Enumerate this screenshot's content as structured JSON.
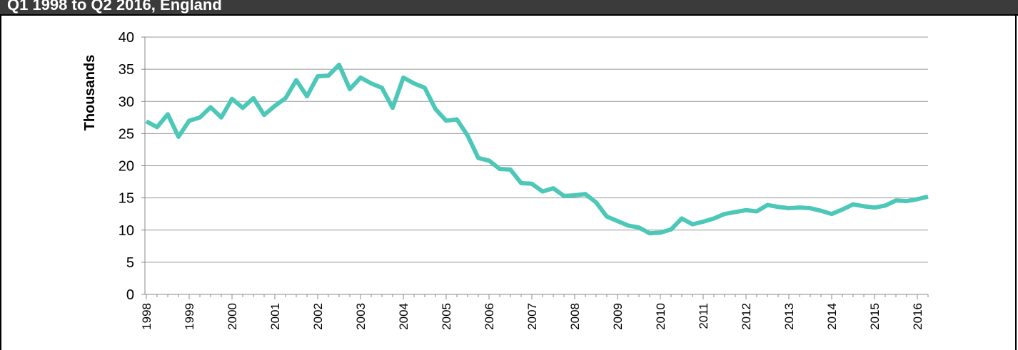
{
  "chart_data": {
    "type": "line",
    "title": "Q1 1998 to Q2 2016, England",
    "y_label": "Thousands",
    "categories": [
      "1998",
      null,
      null,
      null,
      "1999",
      null,
      null,
      null,
      "2000",
      null,
      null,
      null,
      "2001",
      null,
      null,
      null,
      "2002",
      null,
      null,
      null,
      "2003",
      null,
      null,
      null,
      "2004",
      null,
      null,
      null,
      "2005",
      null,
      null,
      null,
      "2006",
      null,
      null,
      null,
      "2007",
      null,
      null,
      null,
      "2008",
      null,
      null,
      null,
      "2009",
      null,
      null,
      null,
      "2010",
      null,
      null,
      null,
      "2011",
      null,
      null,
      null,
      "2012",
      null,
      null,
      null,
      "2013",
      null,
      null,
      null,
      "2014",
      null,
      null,
      null,
      "2015",
      null,
      null,
      null,
      "2016",
      null
    ],
    "series": [
      {
        "name": "Thousands",
        "color": "#4dc8b8",
        "values": [
          26.9,
          26.0,
          28.0,
          24.5,
          27.0,
          27.5,
          29.1,
          27.5,
          30.4,
          29.0,
          30.5,
          27.9,
          29.3,
          30.5,
          33.3,
          30.8,
          33.9,
          34.0,
          35.7,
          31.9,
          33.7,
          32.8,
          32.1,
          29.0,
          33.7,
          32.8,
          32.1,
          28.8,
          27.0,
          27.2,
          24.7,
          21.2,
          20.8,
          19.5,
          19.4,
          17.3,
          17.2,
          16.0,
          16.5,
          15.3,
          15.4,
          15.6,
          14.3,
          12.1,
          11.4,
          10.7,
          10.4,
          9.5,
          9.6,
          10.1,
          11.8,
          10.9,
          11.3,
          11.8,
          12.5,
          12.8,
          13.1,
          12.9,
          13.9,
          13.6,
          13.4,
          13.5,
          13.4,
          13.0,
          12.5,
          13.2,
          14.0,
          13.7,
          13.5,
          13.8,
          14.6,
          14.5,
          14.8,
          15.2
        ]
      }
    ],
    "ylim": [
      0,
      40
    ],
    "yticks": [
      0,
      5,
      10,
      15,
      20,
      25,
      30,
      35,
      40
    ],
    "grid": true
  }
}
